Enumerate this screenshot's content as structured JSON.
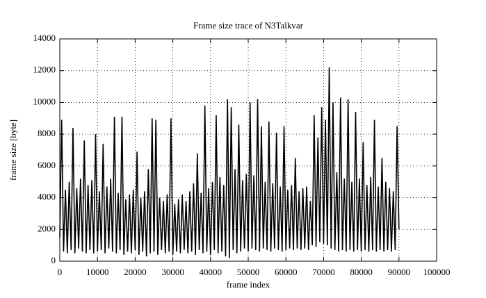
{
  "chart_data": {
    "type": "line",
    "title": "Frame size trace of N3Talkvar",
    "x_label": "frame index",
    "y_label": "frame size [byte]",
    "xlim": [
      0,
      100000
    ],
    "xticks": [
      0,
      10000,
      20000,
      30000,
      40000,
      50000,
      60000,
      70000,
      80000,
      90000,
      100000
    ],
    "ylim": [
      0,
      14000
    ],
    "yticks": [
      0,
      2000,
      4000,
      6000,
      8000,
      10000,
      12000,
      14000
    ],
    "grid": true,
    "x": [
      0,
      500,
      1000,
      1500,
      2000,
      2500,
      3000,
      3500,
      4000,
      4500,
      5000,
      5500,
      6000,
      6500,
      7000,
      7500,
      8000,
      8500,
      9000,
      9500,
      10000,
      10500,
      11000,
      11500,
      12000,
      12500,
      13000,
      13500,
      14000,
      14500,
      15000,
      15500,
      16000,
      16500,
      17000,
      17500,
      18000,
      18500,
      19000,
      19500,
      20000,
      20500,
      21000,
      21500,
      22000,
      22500,
      23000,
      23500,
      24000,
      24500,
      25000,
      25500,
      26000,
      26500,
      27000,
      27500,
      28000,
      28500,
      29000,
      29500,
      30000,
      30500,
      31000,
      31500,
      32000,
      32500,
      33000,
      33500,
      34000,
      34500,
      35000,
      35500,
      36000,
      36500,
      37000,
      37500,
      38000,
      38500,
      39000,
      39500,
      40000,
      40500,
      41000,
      41500,
      42000,
      42500,
      43000,
      43500,
      44000,
      44500,
      45000,
      45500,
      46000,
      46500,
      47000,
      47500,
      48000,
      48500,
      49000,
      49500,
      50000,
      50500,
      51000,
      51500,
      52000,
      52500,
      53000,
      53500,
      54000,
      54500,
      55000,
      55500,
      56000,
      56500,
      57000,
      57500,
      58000,
      58500,
      59000,
      59500,
      60000,
      60500,
      61000,
      61500,
      62000,
      62500,
      63000,
      63500,
      64000,
      64500,
      65000,
      65500,
      66000,
      66500,
      67000,
      67500,
      68000,
      68500,
      69000,
      69500,
      70000,
      70500,
      71000,
      71500,
      72000,
      72500,
      73000,
      73500,
      74000,
      74500,
      75000,
      75500,
      76000,
      76500,
      77000,
      77500,
      78000,
      78500,
      79000,
      79500,
      80000,
      80500,
      81000,
      81500,
      82000,
      82500,
      83000,
      83500,
      84000,
      84500,
      85000,
      85500,
      86000,
      86500,
      87000,
      87500,
      88000,
      88500,
      89000,
      89500,
      90000
    ],
    "series": [
      {
        "color": "#000000",
        "values": [
          1500,
          8900,
          600,
          4500,
          500,
          5000,
          700,
          8400,
          500,
          4600,
          800,
          5200,
          600,
          7600,
          500,
          4800,
          700,
          5100,
          500,
          8000,
          600,
          4400,
          700,
          7400,
          500,
          4700,
          800,
          5200,
          600,
          9100,
          500,
          4300,
          700,
          9100,
          400,
          3900,
          600,
          4200,
          500,
          4500,
          700,
          6900,
          400,
          4000,
          600,
          4400,
          300,
          5800,
          500,
          9000,
          600,
          8900,
          400,
          4000,
          700,
          3800,
          500,
          4200,
          600,
          9000,
          400,
          3600,
          600,
          3900,
          500,
          4200,
          700,
          3800,
          500,
          4400,
          600,
          4900,
          400,
          6800,
          700,
          4300,
          500,
          9800,
          600,
          4600,
          400,
          5000,
          700,
          9200,
          500,
          5300,
          600,
          4800,
          300,
          10200,
          200,
          9700,
          700,
          5800,
          500,
          8600,
          600,
          5100,
          800,
          5500,
          600,
          10000,
          800,
          5400,
          700,
          10200,
          600,
          8500,
          800,
          5000,
          700,
          8800,
          600,
          4900,
          800,
          8100,
          700,
          4700,
          600,
          8500,
          700,
          4500,
          800,
          4800,
          700,
          6500,
          800,
          4400,
          700,
          4600,
          800,
          4700,
          700,
          3800,
          1000,
          9200,
          900,
          7800,
          1200,
          9700,
          1100,
          8900,
          1000,
          12200,
          800,
          10000,
          700,
          5600,
          600,
          10300,
          700,
          5200,
          600,
          10200,
          700,
          5000,
          600,
          9400,
          700,
          5200,
          600,
          7500,
          700,
          4800,
          600,
          5300,
          700,
          8900,
          600,
          4700,
          700,
          6500,
          600,
          5000,
          700,
          4600,
          600,
          4400,
          700,
          8500,
          2000
        ]
      }
    ]
  }
}
